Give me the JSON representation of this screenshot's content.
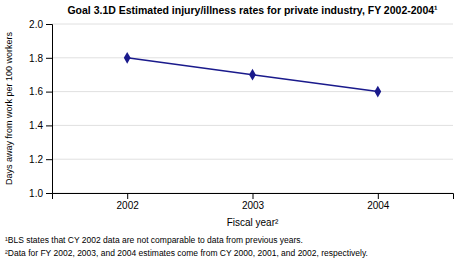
{
  "chart_data": {
    "type": "line",
    "title": "Goal 3.1D  Estimated injury/illness rates for private industry, FY 2002-2004¹",
    "xlabel": "Fiscal year²",
    "ylabel": "Days away from work per 100 workers",
    "x": [
      2002,
      2003,
      2004
    ],
    "values": [
      1.8,
      1.7,
      1.6
    ],
    "color": "#1a1a8c",
    "marker": "diamond",
    "line_style": "solid",
    "xlim": [
      2001.4,
      2004.6
    ],
    "xticks": [
      2002,
      2003,
      2004
    ],
    "ylim": [
      1.0,
      2.0
    ],
    "yticks": [
      {
        "value": 1.0,
        "label": "1.0"
      },
      1.2,
      1.4,
      1.6,
      1.8,
      {
        "value": 2.0,
        "label": "2.0"
      }
    ],
    "grid": true,
    "annotations": [
      "¹BLS states that CY 2002 data are not comparable to data from previous years.",
      "²Data for FY 2002, 2003, and 2004 estimates come from CY 2000, 2001, and 2002, respectively."
    ]
  }
}
